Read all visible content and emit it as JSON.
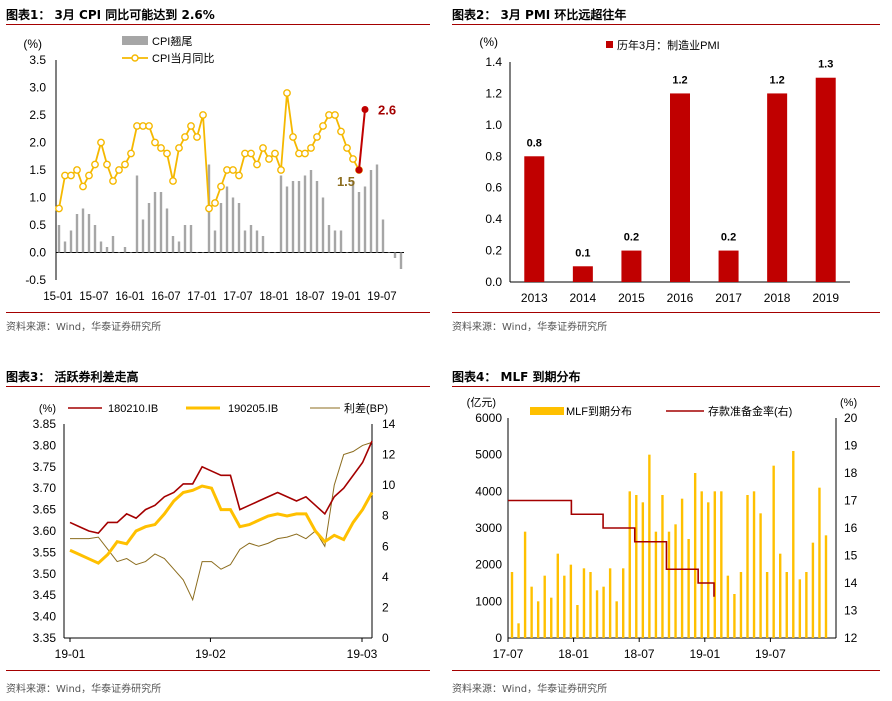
{
  "panels": [
    {
      "title": "图表1：  3月 CPI 同比可能达到 2.6%",
      "source": "资料来源：Wind，华泰证券研究所"
    },
    {
      "title": "图表2：  3月 PMI 环比远超往年",
      "source": "资料来源：Wind，华泰证券研究所"
    },
    {
      "title": "图表3：  活跃券利差走高",
      "source": "资料来源：Wind，华泰证券研究所"
    },
    {
      "title": "图表4：  MLF 到期分布",
      "source": "资料来源：Wind，华泰证券研究所"
    }
  ],
  "colors": {
    "gray": "#a6a6a6",
    "gold": "#f5b800",
    "red": "#c00000",
    "darkred": "#a40000",
    "olive": "#8c6d1f",
    "orange": "#ffc000"
  },
  "chart_data": [
    {
      "type": "bar+line",
      "unit": "(%)",
      "ylim": [
        -0.5,
        3.5
      ],
      "yticks": [
        "3.5",
        "3.0",
        "2.5",
        "2.0",
        "1.5",
        "1.0",
        "0.5",
        "0.0",
        "-0.5"
      ],
      "xticks": [
        "15-01",
        "15-07",
        "16-01",
        "16-07",
        "17-01",
        "17-07",
        "18-01",
        "18-07",
        "19-01",
        "19-07"
      ],
      "series": [
        {
          "name": "CPI翘尾",
          "type": "bar",
          "values": [
            0.5,
            0.2,
            0.4,
            0.7,
            0.8,
            0.7,
            0.5,
            0.2,
            0.1,
            0.3,
            0.0,
            0.1,
            0.0,
            1.4,
            0.6,
            0.9,
            1.1,
            1.1,
            0.8,
            0.3,
            0.2,
            0.5,
            0.5,
            0.0,
            0.0,
            1.6,
            0.4,
            0.9,
            1.2,
            1.0,
            0.9,
            0.4,
            0.5,
            0.4,
            0.3,
            0.0,
            0.0,
            1.4,
            1.2,
            1.3,
            1.3,
            1.4,
            1.5,
            1.3,
            1.0,
            0.5,
            0.4,
            0.4,
            0.0,
            1.3,
            1.1,
            1.2,
            1.5,
            1.6,
            0.6,
            0.0,
            -0.1,
            -0.3
          ]
        },
        {
          "name": "CPI当月同比",
          "type": "line",
          "values": [
            0.8,
            1.4,
            1.4,
            1.5,
            1.2,
            1.4,
            1.6,
            2.0,
            1.6,
            1.3,
            1.5,
            1.6,
            1.8,
            2.3,
            2.3,
            2.3,
            2.0,
            1.9,
            1.8,
            1.3,
            1.9,
            2.1,
            2.3,
            2.1,
            2.5,
            0.8,
            0.9,
            1.2,
            1.5,
            1.5,
            1.4,
            1.8,
            1.8,
            1.6,
            1.9,
            1.7,
            1.8,
            1.5,
            2.9,
            2.1,
            1.8,
            1.8,
            1.9,
            2.1,
            2.3,
            2.5,
            2.5,
            2.2,
            1.9,
            1.7,
            1.5,
            2.6
          ]
        }
      ],
      "annotations": [
        {
          "text": "1.5"
        },
        {
          "text": "2.6"
        }
      ]
    },
    {
      "type": "bar",
      "unit": "(%)",
      "ylim": [
        0,
        1.4
      ],
      "yticks": [
        "1.4",
        "1.2",
        "1.0",
        "0.8",
        "0.6",
        "0.4",
        "0.2",
        "0.0"
      ],
      "categories": [
        "2013",
        "2014",
        "2015",
        "2016",
        "2017",
        "2018",
        "2019"
      ],
      "series": [
        {
          "name": "历年3月：制造业PMI",
          "values": [
            0.8,
            0.1,
            0.2,
            1.2,
            0.2,
            1.2,
            1.3
          ]
        }
      ],
      "data_labels": [
        "0.8",
        "0.1",
        "0.2",
        "1.2",
        "0.2",
        "1.2",
        "1.3"
      ]
    },
    {
      "type": "line",
      "left_unit": "(%)",
      "right_unit": "利差(BP)",
      "ylim_left": [
        3.35,
        3.85
      ],
      "ylim_right": [
        0,
        14
      ],
      "yticks_left": [
        "3.85",
        "3.80",
        "3.75",
        "3.70",
        "3.65",
        "3.60",
        "3.55",
        "3.50",
        "3.45",
        "3.40",
        "3.35"
      ],
      "yticks_right": [
        "14",
        "12",
        "10",
        "8",
        "6",
        "4",
        "2",
        "0"
      ],
      "xticks": [
        "19-01",
        "19-02",
        "19-03"
      ],
      "series": [
        {
          "name": "180210.IB",
          "values": [
            3.62,
            3.61,
            3.6,
            3.595,
            3.62,
            3.62,
            3.64,
            3.63,
            3.65,
            3.66,
            3.68,
            3.69,
            3.71,
            3.71,
            3.75,
            3.74,
            3.73,
            3.73,
            3.65,
            3.66,
            3.67,
            3.68,
            3.69,
            3.68,
            3.67,
            3.68,
            3.66,
            3.64,
            3.68,
            3.7,
            3.73,
            3.76,
            3.81
          ]
        },
        {
          "name": "190205.IB",
          "values": [
            3.555,
            3.545,
            3.535,
            3.525,
            3.545,
            3.575,
            3.57,
            3.6,
            3.61,
            3.615,
            3.64,
            3.67,
            3.69,
            3.695,
            3.705,
            3.7,
            3.65,
            3.65,
            3.61,
            3.615,
            3.625,
            3.635,
            3.64,
            3.635,
            3.64,
            3.64,
            3.6,
            3.575,
            3.59,
            3.58,
            3.62,
            3.65,
            3.69
          ]
        },
        {
          "name": "利差(BP)",
          "values": [
            6.5,
            6.5,
            6.5,
            6.6,
            5.8,
            5.0,
            5.2,
            4.8,
            5.0,
            5.5,
            5.2,
            4.5,
            3.8,
            2.5,
            5.0,
            5.0,
            4.5,
            4.8,
            5.8,
            6.2,
            6.0,
            6.2,
            6.5,
            6.6,
            6.8,
            6.5,
            7.0,
            6.0,
            10.0,
            12.0,
            12.2,
            12.6,
            12.8
          ]
        }
      ]
    },
    {
      "type": "bar+line",
      "left_unit": "(亿元)",
      "right_unit": "(%)",
      "ylim_left": [
        0,
        6000
      ],
      "ylim_right": [
        12,
        20
      ],
      "yticks_left": [
        "6000",
        "5000",
        "4000",
        "3000",
        "2000",
        "1000",
        "0"
      ],
      "yticks_right": [
        "20",
        "19",
        "18",
        "17",
        "16",
        "15",
        "14",
        "13",
        "12"
      ],
      "xticks": [
        "17-07",
        "18-01",
        "18-07",
        "19-01",
        "19-07"
      ],
      "series": [
        {
          "name": "MLF到期分布",
          "type": "bar",
          "values": [
            1800,
            400,
            2900,
            1400,
            1000,
            1700,
            1100,
            2300,
            1700,
            2000,
            900,
            1900,
            1800,
            1300,
            1400,
            1900,
            1000,
            1900,
            4000,
            3900,
            3700,
            5000,
            2900,
            3900,
            2900,
            3100,
            3800,
            2700,
            4500,
            4000,
            3700,
            4000,
            4000,
            1700,
            1200,
            1800,
            3900,
            4000,
            3400,
            1800,
            4700,
            2300,
            1800,
            5100,
            1600,
            1800,
            2600,
            4100,
            2800
          ]
        },
        {
          "name": "存款准备金率(右)",
          "type": "line",
          "values": [
            17.0,
            17.0,
            17.0,
            17.0,
            16.5,
            16.5,
            16.0,
            16.0,
            15.5,
            15.5,
            14.5,
            14.5,
            14.0,
            13.5
          ]
        }
      ]
    }
  ]
}
